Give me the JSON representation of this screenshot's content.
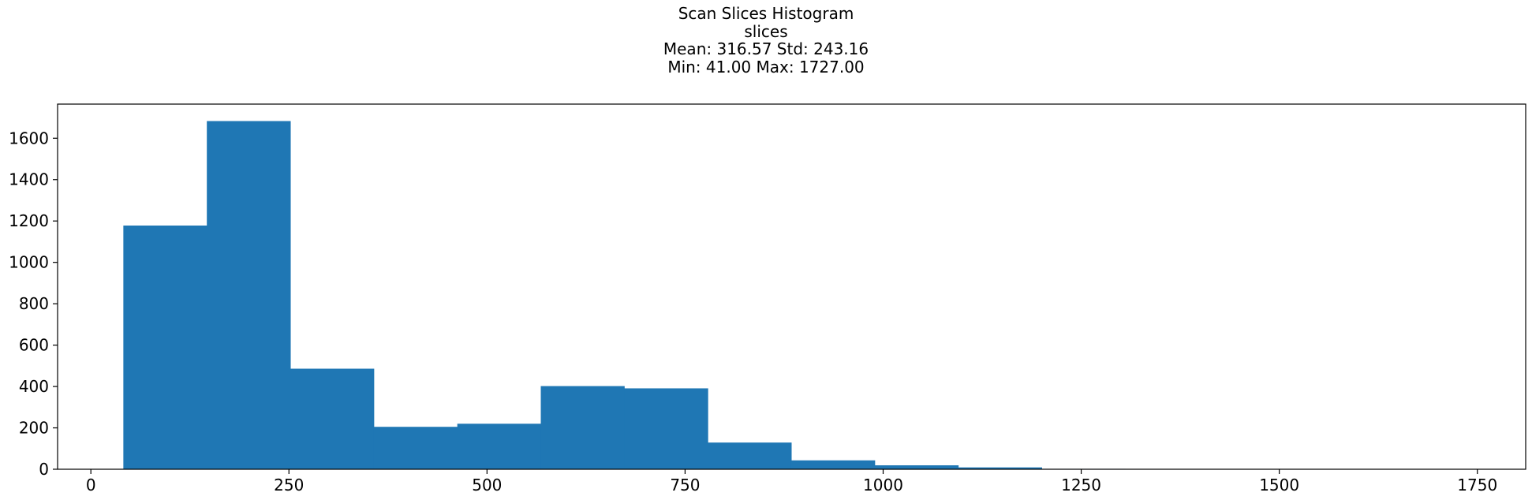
{
  "chart_data": {
    "type": "bar",
    "title": "Scan Slices Histogram",
    "subtitle_lines": [
      "slices",
      "Mean: 316.57 Std: 243.16",
      "Min: 41.00 Max: 1727.00"
    ],
    "xlabel": "",
    "ylabel": "",
    "xlim": [
      -42,
      1811
    ],
    "ylim": [
      0,
      1765
    ],
    "x_ticks": [
      0,
      250,
      500,
      750,
      1000,
      1250,
      1500,
      1750
    ],
    "y_ticks": [
      0,
      200,
      400,
      600,
      800,
      1000,
      1200,
      1400,
      1600
    ],
    "bin_edges": [
      41,
      146.375,
      251.75,
      357.125,
      462.5,
      567.875,
      673.25,
      778.625,
      884,
      989.375,
      1094.75,
      1200.125,
      1305.5,
      1410.875,
      1516.25,
      1621.625,
      1727
    ],
    "values": [
      1178,
      1683,
      486,
      205,
      220,
      402,
      391,
      129,
      43,
      19,
      9,
      2,
      1,
      1,
      0,
      1
    ],
    "bar_color": "#1f77b4",
    "grid": false,
    "legend": "none"
  }
}
